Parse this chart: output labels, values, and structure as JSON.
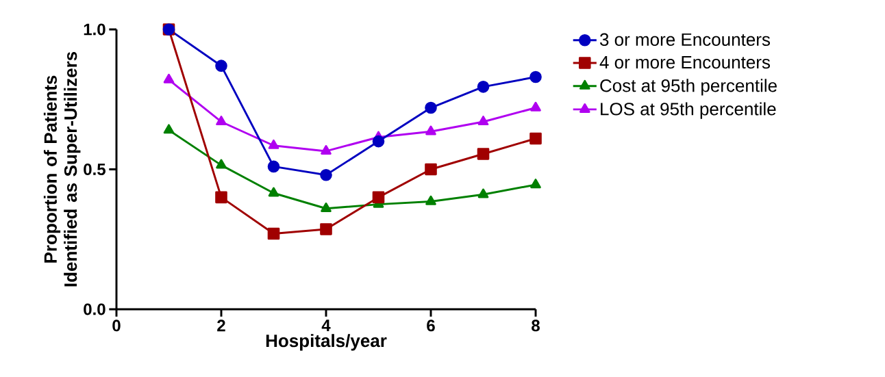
{
  "chart_data": {
    "type": "line",
    "xlabel": "Hospitals/year",
    "ylabel": "Proportion of Patients Identified as Super-Utilizers",
    "x": [
      1,
      2,
      3,
      4,
      5,
      6,
      7,
      8
    ],
    "series": [
      {
        "name": "3 or more Encounters",
        "color": "#0000c0",
        "marker": "circle",
        "values": [
          1.0,
          0.87,
          0.51,
          0.48,
          0.6,
          0.72,
          0.795,
          0.83
        ]
      },
      {
        "name": "4 or more Encounters",
        "color": "#a00000",
        "marker": "square",
        "values": [
          1.0,
          0.4,
          0.27,
          0.286,
          0.4,
          0.5,
          0.555,
          0.61
        ]
      },
      {
        "name": "Cost at 95th percentile",
        "color": "#008000",
        "marker": "triangle",
        "values": [
          0.64,
          0.515,
          0.415,
          0.36,
          0.375,
          0.385,
          0.41,
          0.445
        ]
      },
      {
        "name": "LOS at 95th percentile",
        "color": "#b000f0",
        "marker": "triangle",
        "values": [
          0.82,
          0.67,
          0.585,
          0.565,
          0.615,
          0.635,
          0.67,
          0.72
        ]
      }
    ],
    "xlim": [
      0,
      8
    ],
    "ylim": [
      0,
      1
    ],
    "xticks": [
      0,
      2,
      4,
      6,
      8
    ],
    "yticks": [
      {
        "value": 0,
        "label": "0.0"
      },
      {
        "value": 0.5,
        "label": "0.5"
      },
      {
        "value": 1,
        "label": "1.0"
      }
    ],
    "grid": false,
    "legend": "top right",
    "line_style": "solid"
  }
}
